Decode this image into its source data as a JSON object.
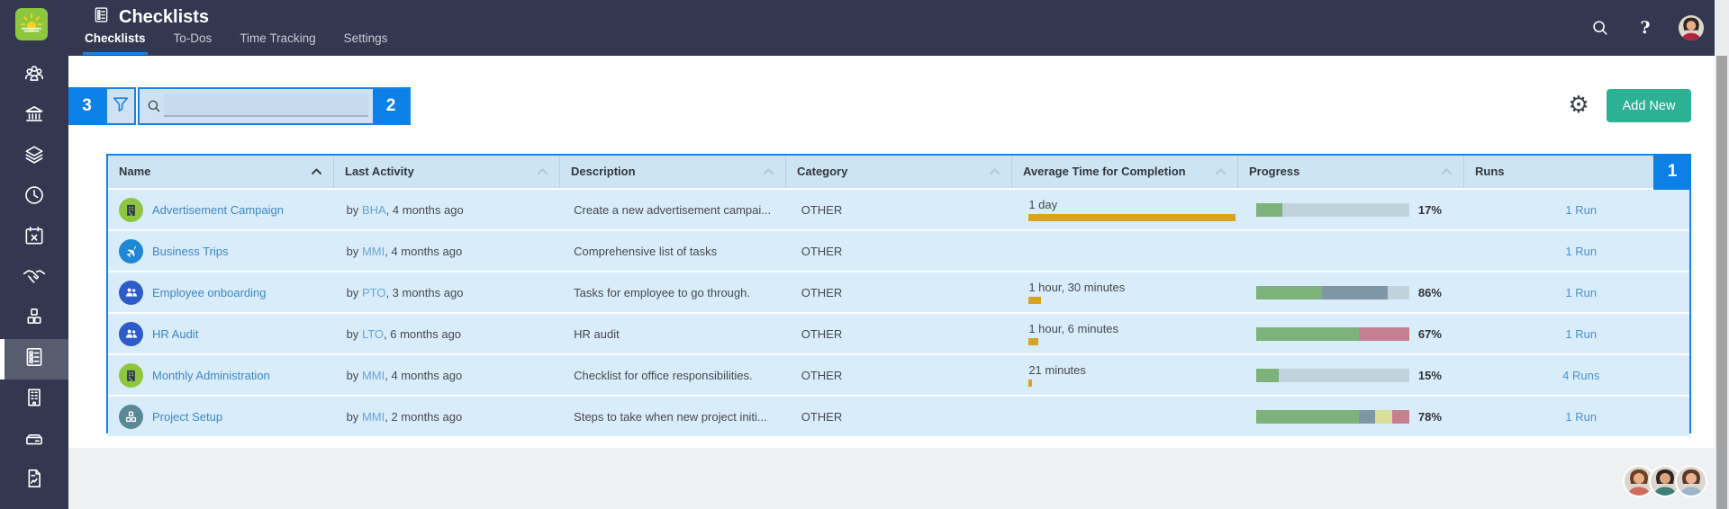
{
  "topbar": {
    "title": "Checklists",
    "tabs": [
      {
        "label": "Checklists",
        "active": true
      },
      {
        "label": "To-Dos",
        "active": false
      },
      {
        "label": "Time Tracking",
        "active": false
      },
      {
        "label": "Settings",
        "active": false
      }
    ],
    "help_glyph": "?"
  },
  "sidebar": {
    "items": [
      {
        "icon": "people-group",
        "active": false
      },
      {
        "icon": "bank",
        "active": false
      },
      {
        "icon": "layers",
        "active": false
      },
      {
        "icon": "clock",
        "active": false
      },
      {
        "icon": "calendar-x",
        "active": false
      },
      {
        "icon": "handshake",
        "active": false
      },
      {
        "icon": "cubes",
        "active": false
      },
      {
        "icon": "checklist",
        "active": true
      },
      {
        "icon": "building",
        "active": false
      },
      {
        "icon": "drawer",
        "active": false
      },
      {
        "icon": "document-report",
        "active": false
      }
    ]
  },
  "toolbar": {
    "hint_badges": {
      "filter": "3",
      "search": "2",
      "table": "1"
    },
    "search_value": "",
    "search_placeholder": "",
    "add_new_label": "Add New"
  },
  "table": {
    "columns": [
      "Name",
      "Last Activity",
      "Description",
      "Category",
      "Average Time for Completion",
      "Progress",
      "Runs"
    ],
    "sort": {
      "column": "Name",
      "direction": "asc"
    },
    "rows": [
      {
        "icon": "building-glyph",
        "icon_bg": "#8ec63f",
        "icon_fg": "#333850",
        "name": "Advertisement Campaign",
        "activity": {
          "prefix": "by ",
          "user": "BHA",
          "suffix": ", 4 months ago"
        },
        "description": "Create a new advertisement campai...",
        "category": "OTHER",
        "avg_time": "1 day",
        "avg_minutes": 1440,
        "progress_label": "17%",
        "progress_segments": [
          [
            "done",
            17
          ],
          [
            "remaining",
            83
          ]
        ],
        "runs": "1 Run"
      },
      {
        "icon": "airplane",
        "icon_bg": "#1f88d4",
        "icon_fg": "#ffffff",
        "name": "Business Trips",
        "activity": {
          "prefix": "by ",
          "user": "MMI",
          "suffix": ", 4 months ago"
        },
        "description": "Comprehensive list of tasks",
        "category": "OTHER",
        "avg_time": "",
        "avg_minutes": 0,
        "progress_label": "",
        "progress_segments": [],
        "runs": "1 Run"
      },
      {
        "icon": "people-pair",
        "icon_bg": "#2d5cc8",
        "icon_fg": "#ffffff",
        "name": "Employee onboarding",
        "activity": {
          "prefix": "by ",
          "user": "PTO",
          "suffix": ", 3 months ago"
        },
        "description": "Tasks for employee to go through.",
        "category": "OTHER",
        "avg_time": "1 hour, 30 minutes",
        "avg_minutes": 90,
        "progress_label": "86%",
        "progress_segments": [
          [
            "done",
            43
          ],
          [
            "slate",
            43
          ],
          [
            "remaining",
            14
          ]
        ],
        "runs": "1 Run"
      },
      {
        "icon": "people-pair",
        "icon_bg": "#2d5cc8",
        "icon_fg": "#ffffff",
        "name": "HR Audit",
        "activity": {
          "prefix": "by ",
          "user": "LTO",
          "suffix": ", 6 months ago"
        },
        "description": "HR audit",
        "category": "OTHER",
        "avg_time": "1 hour, 6 minutes",
        "avg_minutes": 66,
        "progress_label": "67%",
        "progress_segments": [
          [
            "done",
            67
          ],
          [
            "pink",
            33
          ]
        ],
        "runs": "1 Run"
      },
      {
        "icon": "building-glyph",
        "icon_bg": "#8ec63f",
        "icon_fg": "#333850",
        "name": "Monthly Administration",
        "activity": {
          "prefix": "by ",
          "user": "MMI",
          "suffix": ", 4 months ago"
        },
        "description": "Checklist for office responsibilities.",
        "category": "OTHER",
        "avg_time": "21 minutes",
        "avg_minutes": 21,
        "progress_label": "15%",
        "progress_segments": [
          [
            "done",
            15
          ],
          [
            "remaining",
            85
          ]
        ],
        "runs": "4 Runs"
      },
      {
        "icon": "cubes-glyph",
        "icon_bg": "#5a8896",
        "icon_fg": "#ffffff",
        "name": "Project Setup",
        "activity": {
          "prefix": "by ",
          "user": "MMI",
          "suffix": ", 2 months ago"
        },
        "description": "Steps to take when new project initi...",
        "category": "OTHER",
        "avg_time": "",
        "avg_minutes": 0,
        "progress_label": "78%",
        "progress_segments": [
          [
            "done",
            67
          ],
          [
            "slate",
            11
          ],
          [
            "lime",
            11
          ],
          [
            "pink",
            11
          ]
        ],
        "runs": "1 Run"
      }
    ]
  },
  "footer": {
    "avatar_count": 3
  },
  "colors": {
    "accent_blue": "#1584e8",
    "hint_badge_blue": "#0d80e8",
    "topbar_bg": "#333850",
    "logo_green": "#8ec63f",
    "add_new_green": "#2bb194",
    "avg_bar_orange": "#d9a31f",
    "progress": {
      "done": "#7db37a",
      "slate": "#7e96a5",
      "remaining": "#c0d3dd",
      "pink": "#c5808f",
      "lime": "#d7df9a"
    }
  }
}
